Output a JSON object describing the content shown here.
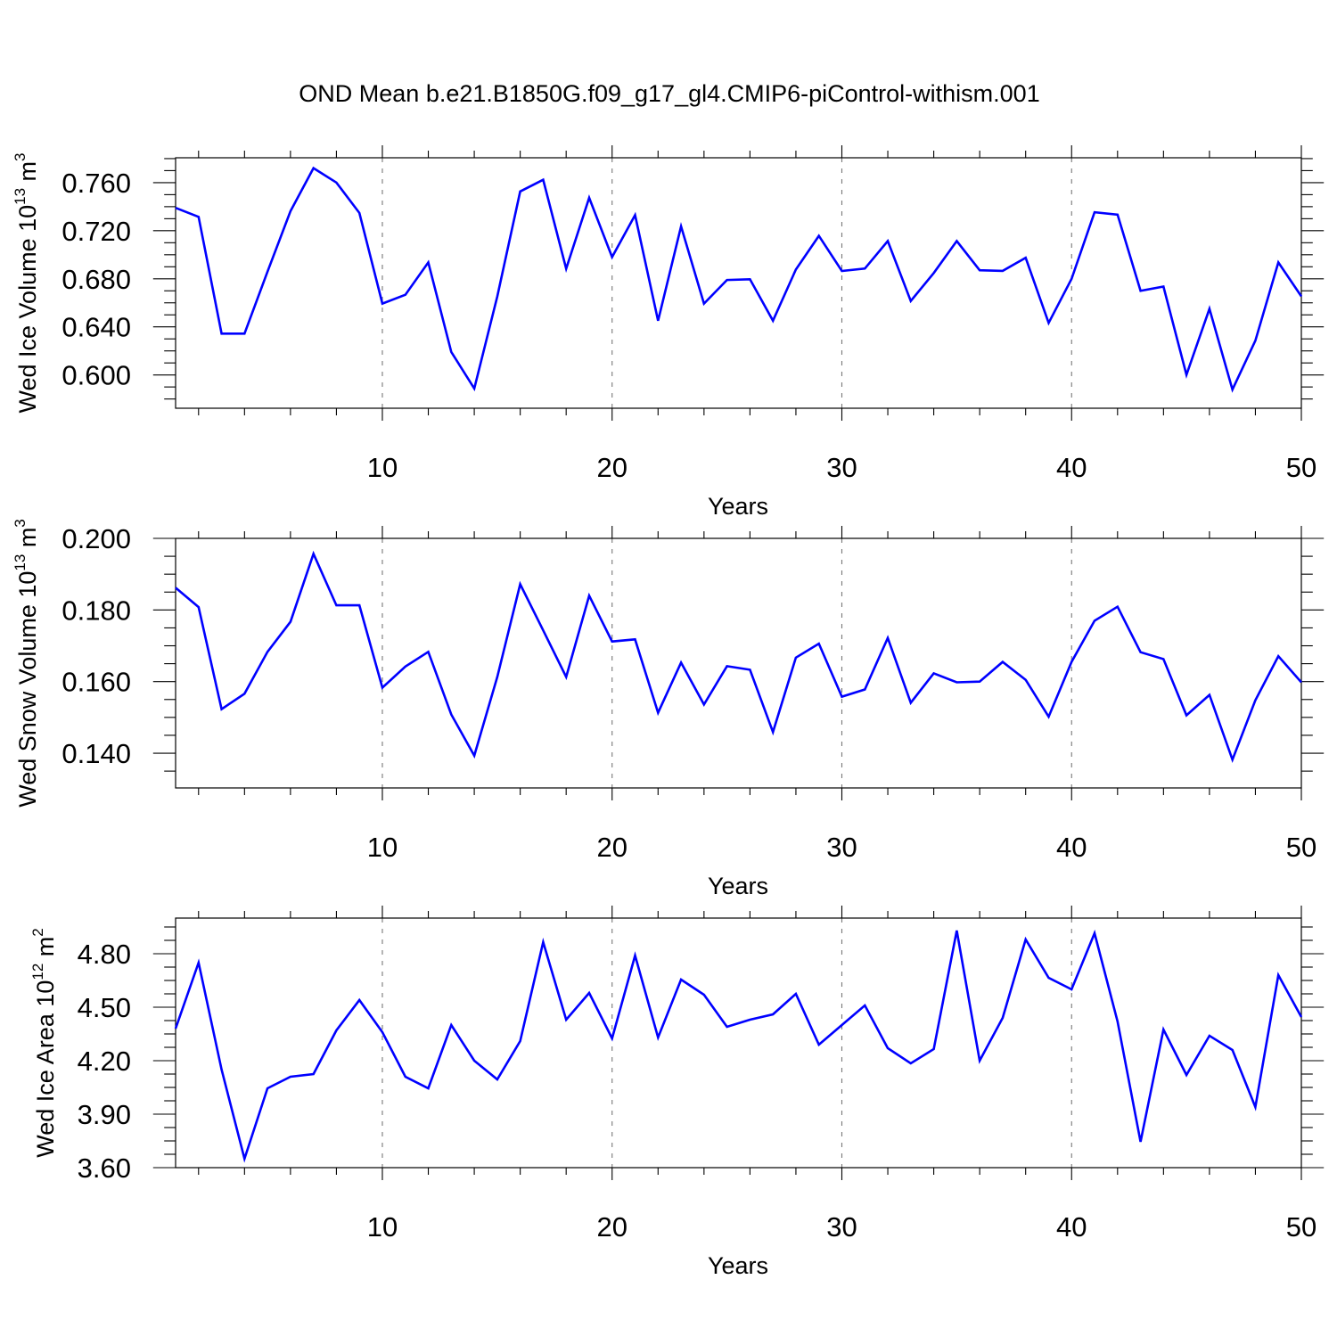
{
  "title": "OND Mean b.e21.B1850G.f09_g17_gl4.CMIP6-piControl-withism.001",
  "colors": {
    "series": "#0000ff",
    "axes": "#000000",
    "grid": "#777777"
  },
  "chart_data": [
    {
      "type": "line",
      "xlabel": "Years",
      "ylabel": {
        "main": "Wed Ice Volume 10",
        "sup1": "13",
        "unit": " m",
        "sup2": "3"
      },
      "xlim": [
        1,
        50
      ],
      "ylim": [
        0.5723,
        0.7807
      ],
      "x_ticks": [
        10,
        20,
        30,
        40,
        50
      ],
      "x_tick_labels": [
        "10",
        "20",
        "30",
        "40",
        "50"
      ],
      "x_minor_step": 2,
      "y_ticks": [
        0.6,
        0.64,
        0.68,
        0.72,
        0.76
      ],
      "y_tick_labels": [
        "0.600",
        "0.640",
        "0.680",
        "0.720",
        "0.760"
      ],
      "y_minor_step": 0.01,
      "grid": "vertical dashed at major x ticks",
      "x": [
        1,
        2,
        3,
        4,
        5,
        6,
        7,
        8,
        9,
        10,
        11,
        12,
        13,
        14,
        15,
        16,
        17,
        18,
        19,
        20,
        21,
        22,
        23,
        24,
        25,
        26,
        27,
        28,
        29,
        30,
        31,
        32,
        33,
        34,
        35,
        36,
        37,
        38,
        39,
        40,
        41,
        42,
        43,
        44,
        45,
        46,
        47,
        48,
        49,
        50
      ],
      "values": [
        0.739,
        0.7315,
        0.6344,
        0.6344,
        0.6859,
        0.7363,
        0.7721,
        0.7601,
        0.7348,
        0.6594,
        0.6667,
        0.6936,
        0.6191,
        0.5887,
        0.6652,
        0.7527,
        0.7624,
        0.6884,
        0.7474,
        0.6981,
        0.733,
        0.6451,
        0.7236,
        0.6594,
        0.679,
        0.6796,
        0.6451,
        0.6877,
        0.7157,
        0.6865,
        0.6885,
        0.7114,
        0.6615,
        0.6848,
        0.7114,
        0.6871,
        0.6866,
        0.6975,
        0.6433,
        0.6799,
        0.7354,
        0.7334,
        0.67,
        0.6735,
        0.6001,
        0.6551,
        0.5878,
        0.6285,
        0.6936,
        0.6654
      ]
    },
    {
      "type": "line",
      "xlabel": "Years",
      "ylabel": {
        "main": "Wed Snow Volume 10",
        "sup1": "13",
        "unit": " m",
        "sup2": "3"
      },
      "xlim": [
        1,
        50
      ],
      "ylim": [
        0.1303,
        0.2
      ],
      "x_ticks": [
        10,
        20,
        30,
        40,
        50
      ],
      "x_tick_labels": [
        "10",
        "20",
        "30",
        "40",
        "50"
      ],
      "x_minor_step": 2,
      "y_ticks": [
        0.14,
        0.16,
        0.18,
        0.2
      ],
      "y_tick_labels": [
        "0.140",
        "0.160",
        "0.180",
        "0.200"
      ],
      "y_minor_step": 0.005,
      "grid": "vertical dashed at major x ticks",
      "x": [
        1,
        2,
        3,
        4,
        5,
        6,
        7,
        8,
        9,
        10,
        11,
        12,
        13,
        14,
        15,
        16,
        17,
        18,
        19,
        20,
        21,
        22,
        23,
        24,
        25,
        26,
        27,
        28,
        29,
        30,
        31,
        32,
        33,
        34,
        35,
        36,
        37,
        38,
        39,
        40,
        41,
        42,
        43,
        44,
        45,
        46,
        47,
        48,
        49,
        50
      ],
      "values": [
        0.1862,
        0.1808,
        0.1523,
        0.1566,
        0.1683,
        0.1767,
        0.1957,
        0.1813,
        0.1813,
        0.1583,
        0.1642,
        0.1683,
        0.1508,
        0.1393,
        0.1613,
        0.1872,
        0.1743,
        0.1613,
        0.184,
        0.1712,
        0.1718,
        0.1513,
        0.1653,
        0.1536,
        0.1643,
        0.1633,
        0.1459,
        0.1667,
        0.1706,
        0.1558,
        0.1578,
        0.1722,
        0.1541,
        0.1623,
        0.1598,
        0.16,
        0.1655,
        0.1605,
        0.1502,
        0.1655,
        0.177,
        0.1809,
        0.1682,
        0.1663,
        0.1506,
        0.1563,
        0.1382,
        0.1548,
        0.1671,
        0.1598
      ]
    },
    {
      "type": "line",
      "xlabel": "Years",
      "ylabel": {
        "main": "Wed Ice Area 10",
        "sup1": "12",
        "unit": " m",
        "sup2": "2"
      },
      "xlim": [
        1,
        50
      ],
      "ylim": [
        3.6,
        5.0
      ],
      "x_ticks": [
        10,
        20,
        30,
        40,
        50
      ],
      "x_tick_labels": [
        "10",
        "20",
        "30",
        "40",
        "50"
      ],
      "x_minor_step": 2,
      "y_ticks": [
        3.6,
        3.9,
        4.2,
        4.5,
        4.8
      ],
      "y_tick_labels": [
        "3.60",
        "3.90",
        "4.20",
        "4.50",
        "4.80"
      ],
      "y_minor_step": 0.075,
      "grid": "vertical dashed at major x ticks",
      "x": [
        1,
        2,
        3,
        4,
        5,
        6,
        7,
        8,
        9,
        10,
        11,
        12,
        13,
        14,
        15,
        16,
        17,
        18,
        19,
        20,
        21,
        22,
        23,
        24,
        25,
        26,
        27,
        28,
        29,
        30,
        31,
        32,
        33,
        34,
        35,
        36,
        37,
        38,
        39,
        40,
        41,
        42,
        43,
        44,
        45,
        46,
        47,
        48,
        49,
        50
      ],
      "values": [
        4.38,
        4.75,
        4.15,
        3.65,
        4.045,
        4.11,
        4.125,
        4.37,
        4.54,
        4.36,
        4.11,
        4.045,
        4.4,
        4.2,
        4.095,
        4.31,
        4.865,
        4.43,
        4.58,
        4.325,
        4.79,
        4.33,
        4.655,
        4.57,
        4.39,
        4.43,
        4.46,
        4.575,
        4.29,
        4.4,
        4.51,
        4.27,
        4.185,
        4.265,
        4.93,
        4.2,
        4.44,
        4.88,
        4.665,
        4.6,
        4.915,
        4.42,
        3.745,
        4.375,
        4.12,
        4.34,
        4.26,
        3.94,
        4.68,
        4.445
      ]
    }
  ]
}
